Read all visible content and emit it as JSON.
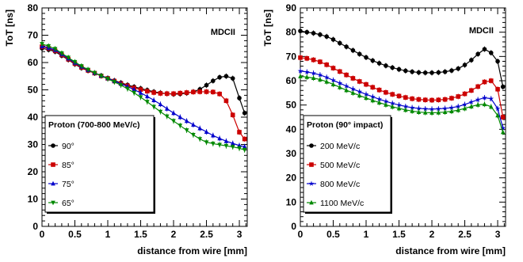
{
  "chart_data": [
    {
      "type": "line",
      "xlabel": "distance from wire [mm]",
      "ylabel": "ToT [ns]",
      "xlim": [
        0,
        3.12
      ],
      "ylim": [
        0,
        80
      ],
      "x_ticks": [
        "0",
        "0.5",
        "1",
        "1.5",
        "2",
        "2.5",
        "3"
      ],
      "y_ticks": [
        "0",
        "10",
        "20",
        "30",
        "40",
        "50",
        "60",
        "70",
        "80"
      ],
      "annotation": "MDCII",
      "grid": false,
      "legend": {
        "title": "Proton (700-800 MeV/c)",
        "placement": "bottom-left",
        "entries": [
          "90°",
          "85°",
          "75°",
          "65°"
        ]
      },
      "x": [
        0,
        0.1,
        0.2,
        0.3,
        0.4,
        0.5,
        0.6,
        0.7,
        0.8,
        0.9,
        1.0,
        1.1,
        1.2,
        1.3,
        1.4,
        1.5,
        1.6,
        1.7,
        1.8,
        1.9,
        2.0,
        2.1,
        2.2,
        2.3,
        2.4,
        2.5,
        2.6,
        2.7,
        2.8,
        2.9,
        3.0,
        3.08
      ],
      "series": [
        {
          "name": "90°",
          "color": "#000000",
          "marker": "circle",
          "values": [
            65.2,
            64.7,
            64.0,
            62.5,
            61.0,
            59.4,
            58.0,
            57.0,
            56.1,
            55.2,
            54.3,
            53.4,
            52.6,
            51.8,
            51.1,
            50.5,
            49.9,
            49.3,
            48.9,
            48.6,
            48.4,
            48.5,
            48.8,
            49.3,
            50.2,
            51.7,
            53.3,
            54.6,
            55.0,
            54.2,
            47.0,
            41.5
          ]
        },
        {
          "name": "85°",
          "color": "#cc0000",
          "marker": "square",
          "values": [
            65.8,
            65.2,
            64.3,
            62.8,
            61.2,
            59.6,
            58.2,
            57.1,
            56.1,
            55.1,
            54.2,
            53.2,
            52.3,
            51.5,
            50.7,
            50.1,
            49.5,
            49.0,
            48.7,
            48.6,
            48.6,
            48.8,
            49.0,
            49.2,
            49.3,
            49.3,
            49.2,
            48.5,
            46.0,
            40.8,
            34.5,
            32.0
          ]
        },
        {
          "name": "75°",
          "color": "#0000cc",
          "marker": "triangle",
          "values": [
            66.0,
            65.4,
            64.6,
            63.1,
            61.5,
            59.9,
            58.5,
            57.3,
            56.2,
            55.2,
            54.2,
            53.2,
            52.2,
            51.2,
            50.1,
            48.9,
            47.6,
            46.2,
            44.7,
            43.1,
            41.5,
            40.0,
            38.6,
            37.2,
            35.9,
            34.6,
            33.3,
            32.2,
            31.2,
            30.4,
            29.6,
            29.2
          ]
        },
        {
          "name": "65°",
          "color": "#008800",
          "marker": "triangle-down",
          "values": [
            66.8,
            66.0,
            65.0,
            63.4,
            61.8,
            60.2,
            58.7,
            57.4,
            56.2,
            55.1,
            54.0,
            52.9,
            51.7,
            50.4,
            48.9,
            47.3,
            45.6,
            43.8,
            42.0,
            40.3,
            38.6,
            36.9,
            35.2,
            33.5,
            32.0,
            30.8,
            30.3,
            29.9,
            29.5,
            29.1,
            28.6,
            28.0
          ]
        }
      ]
    },
    {
      "type": "line",
      "xlabel": "distance from wire [mm]",
      "ylabel": "ToT [ns]",
      "xlim": [
        0,
        3.12
      ],
      "ylim": [
        0,
        90
      ],
      "x_ticks": [
        "0",
        "0.5",
        "1",
        "1.5",
        "2",
        "2.5",
        "3"
      ],
      "y_ticks": [
        "0",
        "10",
        "20",
        "30",
        "40",
        "50",
        "60",
        "70",
        "80",
        "90"
      ],
      "annotation": "MDCII",
      "grid": false,
      "legend": {
        "title": "Proton (90° impact)",
        "placement": "bottom-left",
        "entries": [
          "200 MeV/c",
          "500 MeV/c",
          "800 MeV/c",
          "1100 MeV/c"
        ]
      },
      "x": [
        0,
        0.1,
        0.2,
        0.3,
        0.4,
        0.5,
        0.6,
        0.7,
        0.8,
        0.9,
        1.0,
        1.1,
        1.2,
        1.3,
        1.4,
        1.5,
        1.6,
        1.7,
        1.8,
        1.9,
        2.0,
        2.1,
        2.2,
        2.3,
        2.4,
        2.5,
        2.6,
        2.7,
        2.8,
        2.9,
        3.0,
        3.08
      ],
      "series": [
        {
          "name": "200 MeV/c",
          "color": "#000000",
          "marker": "circle",
          "values": [
            80.5,
            80.0,
            79.6,
            79.0,
            78.2,
            77.0,
            75.5,
            74.0,
            72.5,
            71.0,
            69.6,
            68.3,
            67.2,
            66.2,
            65.4,
            64.7,
            64.1,
            63.7,
            63.4,
            63.3,
            63.3,
            63.4,
            63.7,
            64.2,
            65.0,
            66.5,
            68.5,
            71.0,
            73.0,
            71.5,
            68.0,
            57.5
          ]
        },
        {
          "name": "500 MeV/c",
          "color": "#cc0000",
          "marker": "square",
          "values": [
            69.5,
            69.2,
            68.6,
            67.8,
            66.6,
            65.2,
            63.8,
            62.4,
            61.0,
            59.7,
            58.5,
            57.3,
            56.2,
            55.2,
            54.4,
            53.7,
            53.1,
            52.6,
            52.3,
            52.1,
            52.0,
            52.1,
            52.3,
            52.8,
            53.5,
            54.6,
            56.0,
            57.6,
            59.5,
            60.0,
            56.5,
            45.0
          ]
        },
        {
          "name": "800 MeV/c",
          "color": "#0000cc",
          "marker": "star",
          "values": [
            64.0,
            63.6,
            63.1,
            62.4,
            61.4,
            60.2,
            59.0,
            57.8,
            56.6,
            55.5,
            54.4,
            53.4,
            52.4,
            51.5,
            50.7,
            50.0,
            49.4,
            48.9,
            48.6,
            48.4,
            48.3,
            48.4,
            48.6,
            48.9,
            49.4,
            50.2,
            51.2,
            52.2,
            53.0,
            52.6,
            48.5,
            40.5
          ]
        },
        {
          "name": "1100 MeV/c",
          "color": "#008800",
          "marker": "triangle",
          "values": [
            61.8,
            61.5,
            61.1,
            60.5,
            59.6,
            58.5,
            57.3,
            56.1,
            55.0,
            53.9,
            52.9,
            51.9,
            51.0,
            50.1,
            49.3,
            48.6,
            48.0,
            47.5,
            47.1,
            46.9,
            46.8,
            46.9,
            47.1,
            47.4,
            47.9,
            48.6,
            49.4,
            50.1,
            50.3,
            49.3,
            45.7,
            38.8
          ]
        }
      ]
    }
  ]
}
